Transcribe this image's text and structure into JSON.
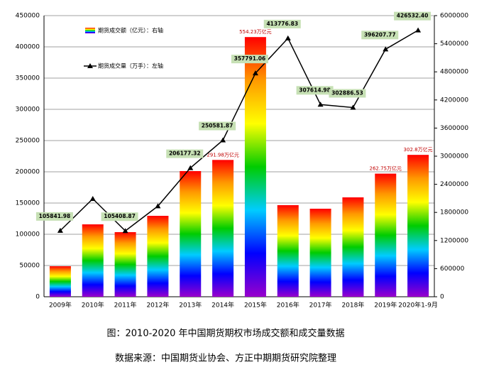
{
  "chart_data": {
    "type": "bar_line",
    "categories": [
      "2009年",
      "2010年",
      "2011年",
      "2012年",
      "2013年",
      "2014年",
      "2015年",
      "2016年",
      "2017年",
      "2018年",
      "2019年",
      "2020年1-9月"
    ],
    "series": [
      {
        "name": "期货成交额（亿元）：右轴",
        "type": "bar",
        "axis": "y2",
        "gradient": [
          "#ff0000",
          "#ff9900",
          "#ffff00",
          "#00cc00",
          "#00ccff",
          "#0000ff",
          "#9900cc"
        ],
        "values": [
          651500,
          1545000,
          1379000,
          1727000,
          2682000,
          2919800,
          5542300,
          1955000,
          1879000,
          2121000,
          2627500,
          3028000
        ],
        "value_labels": [
          null,
          null,
          null,
          null,
          null,
          "291.98万亿元",
          "554.23万亿元",
          null,
          null,
          null,
          "262.75万亿元",
          "302.8万亿元"
        ]
      },
      {
        "name": "期货成交量（万手）：左轴",
        "type": "line",
        "color": "#000000",
        "values": [
          105841.98,
          156800,
          105408.87,
          145000,
          206177.32,
          250581.87,
          357791.06,
          413776.83,
          307614.98,
          302886.53,
          396207.77,
          426532.4
        ],
        "value_labels": [
          "105841.98",
          null,
          "105408.87",
          null,
          "206177.32",
          "250581.87",
          "357791.06",
          "413776.83",
          "307614.98",
          "302886.53",
          "396207.77",
          "426532.40"
        ]
      }
    ],
    "ylim": [
      0,
      450000
    ],
    "yticks": [
      0,
      50000,
      100000,
      150000,
      200000,
      250000,
      300000,
      350000,
      400000,
      450000
    ],
    "y2lim": [
      0,
      6000000
    ],
    "y2ticks": [
      0,
      600000,
      1200000,
      1800000,
      2400000,
      3000000,
      3600000,
      4200000,
      4800000,
      5400000,
      6000000
    ],
    "grid": true,
    "caption": "图：2010-2020 年中国期货期权市场成交额和成交量数据",
    "source": "数据来源：中国期货业协会、方正中期期货研究院整理"
  }
}
